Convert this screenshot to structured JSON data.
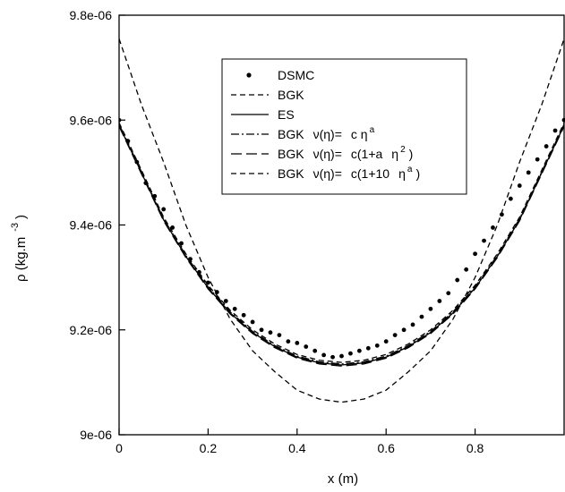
{
  "chart_data": {
    "type": "line",
    "xlabel": "x (m)",
    "ylabel_main": "ρ  (kg.m",
    "ylabel_exp": "-3",
    "ylabel_close": ")",
    "xlim": [
      0,
      1
    ],
    "ylim": [
      9e-06,
      9.8e-06
    ],
    "grid": false,
    "legend_position": "upper-center",
    "x_ticks": [
      0,
      0.2,
      0.4,
      0.6,
      0.8
    ],
    "x_tick_labels": [
      "0",
      "0.2",
      "0.4",
      "0.6",
      "0.8"
    ],
    "y_ticks": [
      9e-06,
      9.2e-06,
      9.4e-06,
      9.6e-06,
      9.8e-06
    ],
    "y_tick_labels": [
      "9e-06",
      "9.2e-06",
      "9.4e-06",
      "9.6e-06",
      "9.8e-06"
    ],
    "legend": [
      {
        "id": "dsmc",
        "style": "dots",
        "parts": [
          {
            "t": "DSMC"
          }
        ]
      },
      {
        "id": "bgk",
        "style": "dash",
        "parts": [
          {
            "t": "BGK"
          }
        ]
      },
      {
        "id": "es",
        "style": "solid",
        "parts": [
          {
            "t": "ES"
          }
        ]
      },
      {
        "id": "bgk-power",
        "style": "dashdot",
        "parts": [
          {
            "t": "BGK"
          },
          {
            "t": "ν(η)="
          },
          {
            "t": "c η"
          },
          {
            "t": "a",
            "sup": true
          }
        ]
      },
      {
        "id": "bgk-quad",
        "style": "longdash",
        "parts": [
          {
            "t": "BGK"
          },
          {
            "t": "ν(η)="
          },
          {
            "t": "c(1+a"
          },
          {
            "t": "η"
          },
          {
            "t": "2",
            "sup": true
          },
          {
            "t": ")"
          }
        ]
      },
      {
        "id": "bgk-ten",
        "style": "dash",
        "parts": [
          {
            "t": "BGK"
          },
          {
            "t": "ν(η)="
          },
          {
            "t": "c(1+10"
          },
          {
            "t": "η"
          },
          {
            "t": "a",
            "sup": true
          },
          {
            "t": ")"
          }
        ]
      }
    ],
    "series": [
      {
        "name": "DSMC",
        "style": "dots",
        "x": [
          0.0,
          0.02,
          0.04,
          0.06,
          0.08,
          0.1,
          0.12,
          0.14,
          0.16,
          0.18,
          0.2,
          0.22,
          0.24,
          0.26,
          0.28,
          0.3,
          0.32,
          0.34,
          0.36,
          0.38,
          0.4,
          0.42,
          0.44,
          0.46,
          0.48,
          0.5,
          0.52,
          0.54,
          0.56,
          0.58,
          0.6,
          0.62,
          0.64,
          0.66,
          0.68,
          0.7,
          0.72,
          0.74,
          0.76,
          0.78,
          0.8,
          0.82,
          0.84,
          0.86,
          0.88,
          0.9,
          0.92,
          0.94,
          0.96,
          0.98,
          1.0
        ],
        "y": [
          9.6e-06,
          9.56e-06,
          9.52e-06,
          9.48e-06,
          9.455e-06,
          9.43e-06,
          9.395e-06,
          9.365e-06,
          9.335e-06,
          9.31e-06,
          9.29e-06,
          9.272e-06,
          9.255e-06,
          9.24e-06,
          9.228e-06,
          9.215e-06,
          9.2e-06,
          9.195e-06,
          9.19e-06,
          9.178e-06,
          9.175e-06,
          9.168e-06,
          9.16e-06,
          9.152e-06,
          9.148e-06,
          9.15e-06,
          9.155e-06,
          9.16e-06,
          9.165e-06,
          9.17e-06,
          9.178e-06,
          9.19e-06,
          9.2e-06,
          9.21e-06,
          9.225e-06,
          9.24e-06,
          9.255e-06,
          9.27e-06,
          9.295e-06,
          9.315e-06,
          9.345e-06,
          9.37e-06,
          9.395e-06,
          9.42e-06,
          9.45e-06,
          9.475e-06,
          9.5e-06,
          9.525e-06,
          9.55e-06,
          9.58e-06,
          9.6e-06
        ]
      },
      {
        "name": "BGK",
        "style": "dash",
        "x": [
          0.0,
          0.05,
          0.1,
          0.15,
          0.2,
          0.25,
          0.3,
          0.35,
          0.4,
          0.45,
          0.5,
          0.55,
          0.6,
          0.65,
          0.7,
          0.75,
          0.8,
          0.85,
          0.9,
          0.95,
          1.0
        ],
        "y": [
          9.755e-06,
          9.63e-06,
          9.52e-06,
          9.4e-06,
          9.3e-06,
          9.22e-06,
          9.16e-06,
          9.12e-06,
          9.085e-06,
          9.068e-06,
          9.062e-06,
          9.068e-06,
          9.085e-06,
          9.12e-06,
          9.16e-06,
          9.22e-06,
          9.3e-06,
          9.4e-06,
          9.52e-06,
          9.63e-06,
          9.755e-06
        ]
      },
      {
        "name": "ES",
        "style": "solid",
        "x": [
          0.0,
          0.05,
          0.1,
          0.15,
          0.2,
          0.25,
          0.3,
          0.35,
          0.4,
          0.45,
          0.5,
          0.55,
          0.6,
          0.65,
          0.7,
          0.75,
          0.8,
          0.85,
          0.9,
          0.95,
          1.0
        ],
        "y": [
          9.59e-06,
          9.5e-06,
          9.41e-06,
          9.34e-06,
          9.28e-06,
          9.232e-06,
          9.195e-06,
          9.168e-06,
          9.148e-06,
          9.137e-06,
          9.133e-06,
          9.137e-06,
          9.148e-06,
          9.168e-06,
          9.195e-06,
          9.232e-06,
          9.28e-06,
          9.34e-06,
          9.41e-06,
          9.5e-06,
          9.59e-06
        ]
      },
      {
        "name": "BGK ν(η)= c η^a",
        "style": "dashdot",
        "x": [
          0.0,
          0.05,
          0.1,
          0.15,
          0.2,
          0.25,
          0.3,
          0.35,
          0.4,
          0.45,
          0.5,
          0.55,
          0.6,
          0.65,
          0.7,
          0.75,
          0.8,
          0.85,
          0.9,
          0.95,
          1.0
        ],
        "y": [
          9.592e-06,
          9.502e-06,
          9.412e-06,
          9.342e-06,
          9.282e-06,
          9.234e-06,
          9.197e-06,
          9.17e-06,
          9.15e-06,
          9.139e-06,
          9.135e-06,
          9.139e-06,
          9.15e-06,
          9.17e-06,
          9.197e-06,
          9.234e-06,
          9.282e-06,
          9.342e-06,
          9.412e-06,
          9.502e-06,
          9.592e-06
        ]
      },
      {
        "name": "BGK ν(η)= c(1+a η^2)",
        "style": "longdash",
        "x": [
          0.0,
          0.05,
          0.1,
          0.15,
          0.2,
          0.25,
          0.3,
          0.35,
          0.4,
          0.45,
          0.5,
          0.55,
          0.6,
          0.65,
          0.7,
          0.75,
          0.8,
          0.85,
          0.9,
          0.95,
          1.0
        ],
        "y": [
          9.588e-06,
          9.498e-06,
          9.408e-06,
          9.338e-06,
          9.278e-06,
          9.23e-06,
          9.193e-06,
          9.166e-06,
          9.146e-06,
          9.135e-06,
          9.131e-06,
          9.135e-06,
          9.146e-06,
          9.166e-06,
          9.193e-06,
          9.23e-06,
          9.278e-06,
          9.338e-06,
          9.408e-06,
          9.498e-06,
          9.588e-06
        ]
      },
      {
        "name": "BGK ν(η)= c(1+10 η^a)",
        "style": "dash",
        "x": [
          0.0,
          0.05,
          0.1,
          0.15,
          0.2,
          0.25,
          0.3,
          0.35,
          0.4,
          0.45,
          0.5,
          0.55,
          0.6,
          0.65,
          0.7,
          0.75,
          0.8,
          0.85,
          0.9,
          0.95,
          1.0
        ],
        "y": [
          9.595e-06,
          9.505e-06,
          9.415e-06,
          9.345e-06,
          9.285e-06,
          9.237e-06,
          9.2e-06,
          9.173e-06,
          9.153e-06,
          9.142e-06,
          9.138e-06,
          9.142e-06,
          9.153e-06,
          9.173e-06,
          9.2e-06,
          9.237e-06,
          9.285e-06,
          9.345e-06,
          9.415e-06,
          9.505e-06,
          9.595e-06
        ]
      }
    ]
  }
}
